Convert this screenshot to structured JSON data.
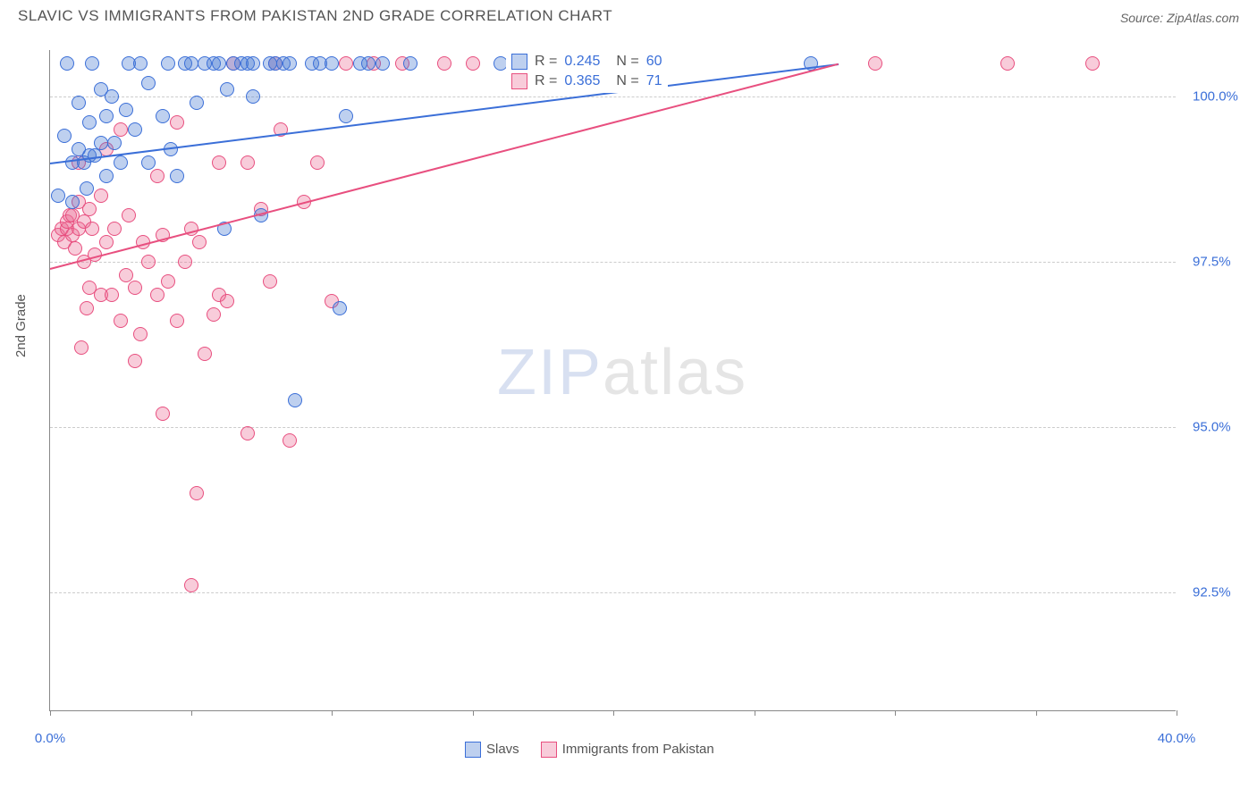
{
  "title": "SLAVIC VS IMMIGRANTS FROM PAKISTAN 2ND GRADE CORRELATION CHART",
  "source": "Source: ZipAtlas.com",
  "y_axis_label": "2nd Grade",
  "watermark": {
    "part1": "ZIP",
    "part2": "atlas"
  },
  "chart": {
    "type": "scatter",
    "background_color": "#ffffff",
    "grid_color": "#cccccc",
    "axis_color": "#888888",
    "tick_label_color": "#3b6fd8",
    "axis_text_color": "#555555",
    "marker_radius": 8,
    "marker_stroke_width": 1.5,
    "xlim": [
      0,
      40
    ],
    "ylim": [
      90.7,
      100.7
    ],
    "x_ticks": [
      0,
      5,
      10,
      15,
      20,
      25,
      30,
      35,
      40
    ],
    "x_tick_labels": {
      "0": "0.0%",
      "40": "40.0%"
    },
    "y_gridlines": [
      92.5,
      95.0,
      97.5,
      100.0
    ],
    "y_tick_labels": {
      "92.5": "92.5%",
      "95.0": "95.0%",
      "97.5": "97.5%",
      "100.0": "100.0%"
    },
    "series": [
      {
        "name": "Slavs",
        "fill_color": "rgba(70,120,210,0.35)",
        "stroke_color": "#3b6fd8",
        "R": "0.245",
        "N": "60",
        "trend": {
          "x1": 0,
          "y1": 99.0,
          "x2": 28,
          "y2": 100.5,
          "width": 2
        },
        "points": [
          [
            0.3,
            98.5
          ],
          [
            0.5,
            99.4
          ],
          [
            0.6,
            100.5
          ],
          [
            0.8,
            99.0
          ],
          [
            0.8,
            98.4
          ],
          [
            1.0,
            99.2
          ],
          [
            1.0,
            99.9
          ],
          [
            1.2,
            99.0
          ],
          [
            1.3,
            98.6
          ],
          [
            1.4,
            99.1
          ],
          [
            1.4,
            99.6
          ],
          [
            1.5,
            100.5
          ],
          [
            1.6,
            99.1
          ],
          [
            1.8,
            99.3
          ],
          [
            1.8,
            100.1
          ],
          [
            2.0,
            98.8
          ],
          [
            2.0,
            99.7
          ],
          [
            2.2,
            100.0
          ],
          [
            2.3,
            99.3
          ],
          [
            2.5,
            99.0
          ],
          [
            2.7,
            99.8
          ],
          [
            2.8,
            100.5
          ],
          [
            3.0,
            99.5
          ],
          [
            3.2,
            100.5
          ],
          [
            3.5,
            99.0
          ],
          [
            3.5,
            100.2
          ],
          [
            4.0,
            99.7
          ],
          [
            4.2,
            100.5
          ],
          [
            4.3,
            99.2
          ],
          [
            4.5,
            98.8
          ],
          [
            4.8,
            100.5
          ],
          [
            5.0,
            100.5
          ],
          [
            5.2,
            99.9
          ],
          [
            5.5,
            100.5
          ],
          [
            5.8,
            100.5
          ],
          [
            6.0,
            100.5
          ],
          [
            6.2,
            98.0
          ],
          [
            6.3,
            100.1
          ],
          [
            6.5,
            100.5
          ],
          [
            6.8,
            100.5
          ],
          [
            7.0,
            100.5
          ],
          [
            7.2,
            100.0
          ],
          [
            7.2,
            100.5
          ],
          [
            7.5,
            98.2
          ],
          [
            7.8,
            100.5
          ],
          [
            8.0,
            100.5
          ],
          [
            8.3,
            100.5
          ],
          [
            8.5,
            100.5
          ],
          [
            8.7,
            95.4
          ],
          [
            9.3,
            100.5
          ],
          [
            9.6,
            100.5
          ],
          [
            10.0,
            100.5
          ],
          [
            10.3,
            96.8
          ],
          [
            10.5,
            99.7
          ],
          [
            11.0,
            100.5
          ],
          [
            11.3,
            100.5
          ],
          [
            11.8,
            100.5
          ],
          [
            12.8,
            100.5
          ],
          [
            16.0,
            100.5
          ],
          [
            27.0,
            100.5
          ]
        ]
      },
      {
        "name": "Immigrants from Pakistan",
        "fill_color": "rgba(235,110,150,0.35)",
        "stroke_color": "#e84f7f",
        "R": "0.365",
        "N": "71",
        "trend": {
          "x1": 0,
          "y1": 97.4,
          "x2": 28,
          "y2": 100.5,
          "width": 2
        },
        "points": [
          [
            0.3,
            97.9
          ],
          [
            0.4,
            98.0
          ],
          [
            0.5,
            97.8
          ],
          [
            0.6,
            98.0
          ],
          [
            0.6,
            98.1
          ],
          [
            0.7,
            98.2
          ],
          [
            0.8,
            97.9
          ],
          [
            0.8,
            98.2
          ],
          [
            0.9,
            97.7
          ],
          [
            1.0,
            98.0
          ],
          [
            1.0,
            98.4
          ],
          [
            1.0,
            99.0
          ],
          [
            1.1,
            96.2
          ],
          [
            1.2,
            98.1
          ],
          [
            1.2,
            97.5
          ],
          [
            1.3,
            96.8
          ],
          [
            1.4,
            98.3
          ],
          [
            1.4,
            97.1
          ],
          [
            1.5,
            98.0
          ],
          [
            1.6,
            97.6
          ],
          [
            1.8,
            97.0
          ],
          [
            1.8,
            98.5
          ],
          [
            2.0,
            97.8
          ],
          [
            2.0,
            99.2
          ],
          [
            2.2,
            97.0
          ],
          [
            2.3,
            98.0
          ],
          [
            2.5,
            96.6
          ],
          [
            2.5,
            99.5
          ],
          [
            2.7,
            97.3
          ],
          [
            2.8,
            98.2
          ],
          [
            3.0,
            96.0
          ],
          [
            3.0,
            97.1
          ],
          [
            3.2,
            96.4
          ],
          [
            3.3,
            97.8
          ],
          [
            3.5,
            97.5
          ],
          [
            3.8,
            97.0
          ],
          [
            3.8,
            98.8
          ],
          [
            4.0,
            95.2
          ],
          [
            4.0,
            97.9
          ],
          [
            4.2,
            97.2
          ],
          [
            4.5,
            96.6
          ],
          [
            4.5,
            99.6
          ],
          [
            4.8,
            97.5
          ],
          [
            5.0,
            98.0
          ],
          [
            5.0,
            92.6
          ],
          [
            5.2,
            94.0
          ],
          [
            5.3,
            97.8
          ],
          [
            5.5,
            96.1
          ],
          [
            5.8,
            96.7
          ],
          [
            6.0,
            99.0
          ],
          [
            6.0,
            97.0
          ],
          [
            6.3,
            96.9
          ],
          [
            6.5,
            100.5
          ],
          [
            7.0,
            99.0
          ],
          [
            7.0,
            94.9
          ],
          [
            7.5,
            98.3
          ],
          [
            7.8,
            97.2
          ],
          [
            8.0,
            100.5
          ],
          [
            8.2,
            99.5
          ],
          [
            8.5,
            94.8
          ],
          [
            9.0,
            98.4
          ],
          [
            9.5,
            99.0
          ],
          [
            10.0,
            96.9
          ],
          [
            10.5,
            100.5
          ],
          [
            11.5,
            100.5
          ],
          [
            12.5,
            100.5
          ],
          [
            14.0,
            100.5
          ],
          [
            15.0,
            100.5
          ],
          [
            29.3,
            100.5
          ],
          [
            34.0,
            100.5
          ],
          [
            37.0,
            100.5
          ]
        ]
      }
    ]
  },
  "legend_top": {
    "R_label": "R =",
    "N_label": "N ="
  },
  "legend_bottom": {
    "label1": "Slavs",
    "label2": "Immigrants from Pakistan"
  }
}
